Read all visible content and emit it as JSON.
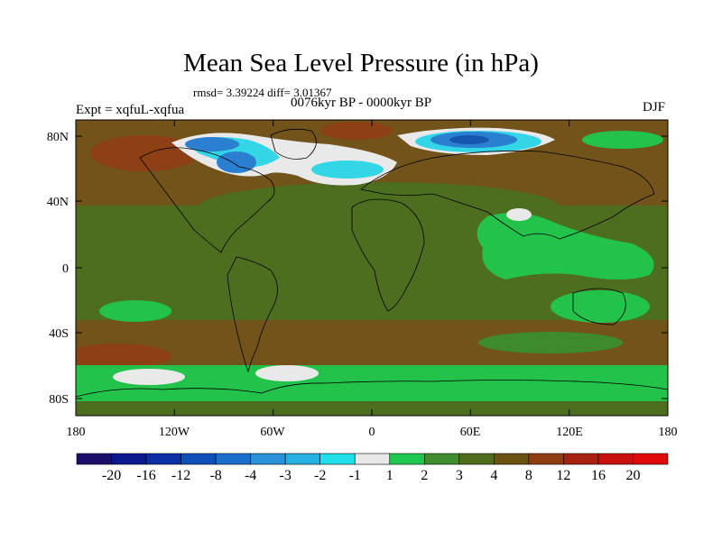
{
  "title": "Mean Sea Level Pressure (in hPa)",
  "stats": "rmsd= 3.39224 diff= 3.01367",
  "experiment": "Expt = xqfuL-xqfua",
  "period": "0076kyr BP - 0000kyr BP",
  "season": "DJF",
  "x_ticks": [
    "180",
    "120W",
    "60W",
    "0",
    "60E",
    "120E",
    "180"
  ],
  "y_ticks": [
    "80N",
    "40N",
    "0",
    "40S",
    "80S"
  ],
  "colorbar": {
    "labels": [
      "-20",
      "-16",
      "-12",
      "-8",
      "-4",
      "-3",
      "-2",
      "-1",
      "1",
      "2",
      "3",
      "4",
      "8",
      "12",
      "16",
      "20"
    ],
    "colors": [
      "#1b0f6b",
      "#0a1a8c",
      "#0c2fa6",
      "#0f4fb8",
      "#1b6fcc",
      "#2a92d8",
      "#27b0e2",
      "#1fe0e8",
      "#e8e8e8",
      "#1ec850",
      "#3e8e30",
      "#506d1b",
      "#6b5210",
      "#8e3d10",
      "#a82210",
      "#c81010",
      "#e00a0a"
    ]
  },
  "colors": {
    "dark_green": "#4e6e1f",
    "mid_green": "#3e8b2e",
    "light_green": "#23c24a",
    "brown": "#72531a",
    "rust": "#8e4015",
    "white": "#e9e9e9",
    "cyan": "#33d6e6",
    "blue": "#2a7fd0",
    "deep_blue": "#1456b0"
  }
}
